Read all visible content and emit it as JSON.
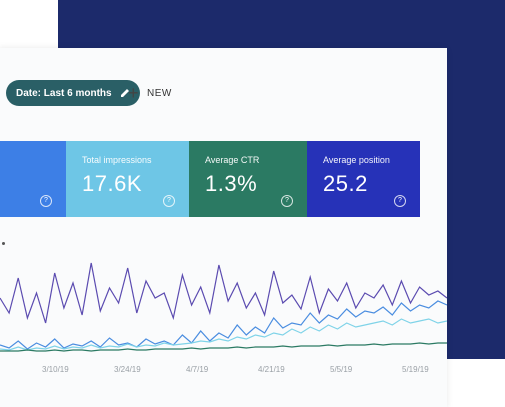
{
  "toolbar": {
    "date_chip_label": "Date: Last 6 months",
    "new_label": "NEW"
  },
  "cards": [
    {
      "label": "",
      "value": "",
      "color": "#3d7fe6"
    },
    {
      "label": "Total impressions",
      "value": "17.6K",
      "color": "#6ec6e6"
    },
    {
      "label": "Average CTR",
      "value": "1.3%",
      "color": "#2b7a63"
    },
    {
      "label": "Average position",
      "value": "25.2",
      "color": "#2632b8"
    }
  ],
  "chart_data": {
    "type": "line",
    "x_tick_labels": [
      "3/10/19",
      "3/24/19",
      "4/7/19",
      "4/21/19",
      "5/5/19",
      "5/19/19"
    ],
    "series": [
      {
        "color": "#5b4bb0",
        "values": [
          55,
          40,
          75,
          35,
          60,
          30,
          80,
          45,
          70,
          38,
          90,
          42,
          65,
          50,
          85,
          40,
          72,
          55,
          60,
          35,
          78,
          48,
          66,
          40,
          88,
          52,
          70,
          45,
          60,
          38,
          82,
          50,
          58,
          44,
          76,
          40,
          64,
          52,
          70,
          45,
          60,
          55,
          68,
          48,
          72,
          50,
          66,
          58,
          62,
          55
        ]
      },
      {
        "color": "#4a8de0",
        "values": [
          8,
          5,
          12,
          4,
          10,
          6,
          14,
          5,
          9,
          7,
          12,
          6,
          15,
          8,
          10,
          6,
          14,
          9,
          12,
          8,
          18,
          10,
          22,
          12,
          20,
          15,
          28,
          18,
          26,
          20,
          35,
          25,
          30,
          28,
          40,
          30,
          38,
          34,
          44,
          36,
          42,
          40,
          46,
          38,
          50,
          42,
          48,
          45,
          52,
          48
        ]
      },
      {
        "color": "#7fd3e8",
        "values": [
          4,
          3,
          6,
          3,
          5,
          4,
          7,
          4,
          6,
          5,
          8,
          5,
          7,
          6,
          9,
          6,
          8,
          7,
          10,
          8,
          9,
          10,
          12,
          11,
          14,
          12,
          16,
          14,
          18,
          16,
          20,
          18,
          24,
          20,
          26,
          22,
          28,
          24,
          30,
          26,
          28,
          30,
          32,
          28,
          34,
          30,
          32,
          34,
          30,
          32
        ]
      },
      {
        "color": "#2b7a63",
        "values": [
          2,
          2,
          2,
          3,
          2,
          2,
          3,
          2,
          3,
          3,
          2,
          3,
          3,
          3,
          4,
          3,
          3,
          4,
          4,
          4,
          4,
          5,
          4,
          5,
          5,
          5,
          6,
          5,
          6,
          6,
          6,
          7,
          6,
          7,
          7,
          7,
          8,
          7,
          8,
          8,
          8,
          9,
          8,
          9,
          9,
          9,
          10,
          9,
          10,
          10
        ]
      }
    ],
    "ylim": [
      0,
      100
    ]
  }
}
